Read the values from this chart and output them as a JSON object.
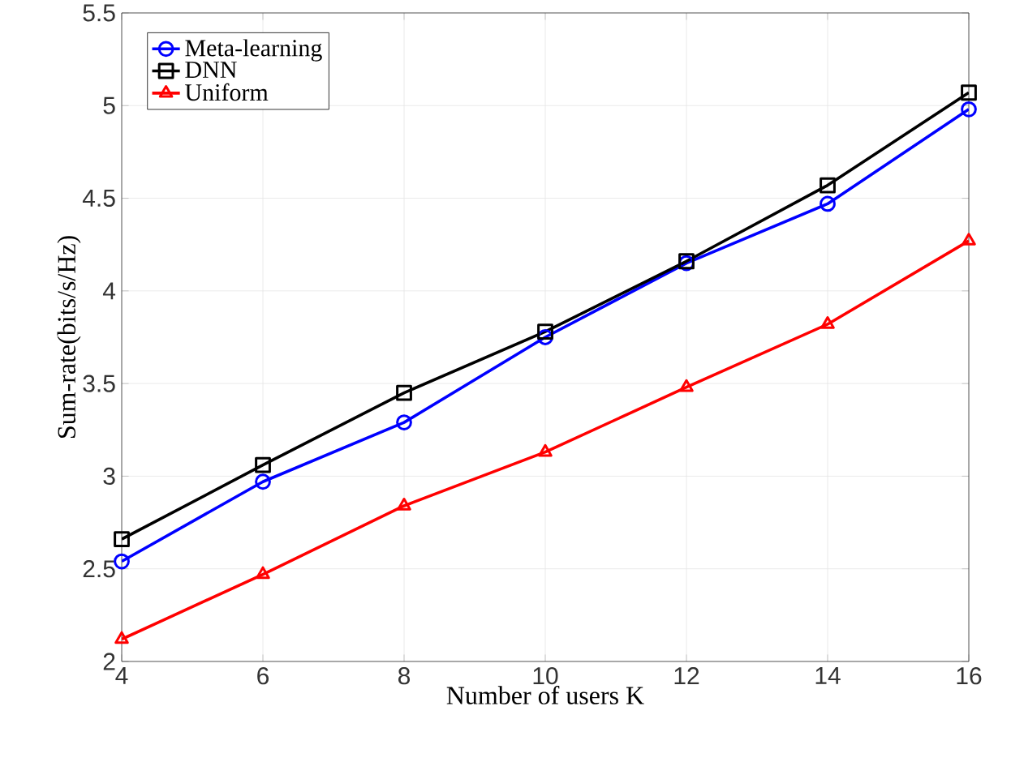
{
  "chart_data": {
    "type": "line",
    "xlabel": "Number of users K",
    "ylabel": "Sum-rate(bits/s/Hz)",
    "x": [
      4,
      6,
      8,
      10,
      12,
      14,
      16
    ],
    "series": [
      {
        "name": "Meta-learning",
        "color": "#0000ff",
        "marker": "circle",
        "values": [
          2.54,
          2.97,
          3.29,
          3.75,
          4.15,
          4.47,
          4.98
        ]
      },
      {
        "name": "DNN",
        "color": "#000000",
        "marker": "square",
        "values": [
          2.66,
          3.06,
          3.45,
          3.78,
          4.16,
          4.57,
          5.07
        ]
      },
      {
        "name": "Uniform",
        "color": "#ff0000",
        "marker": "triangle",
        "values": [
          2.12,
          2.47,
          2.84,
          3.13,
          3.48,
          3.82,
          4.27
        ]
      }
    ],
    "xlim": [
      4,
      16
    ],
    "xticks": [
      4,
      6,
      8,
      10,
      12,
      14,
      16
    ],
    "ylim": [
      2,
      5.5
    ],
    "yticks": [
      2,
      2.5,
      3,
      3.5,
      4,
      4.5,
      5,
      5.5
    ],
    "grid": true,
    "legend": "top left"
  }
}
